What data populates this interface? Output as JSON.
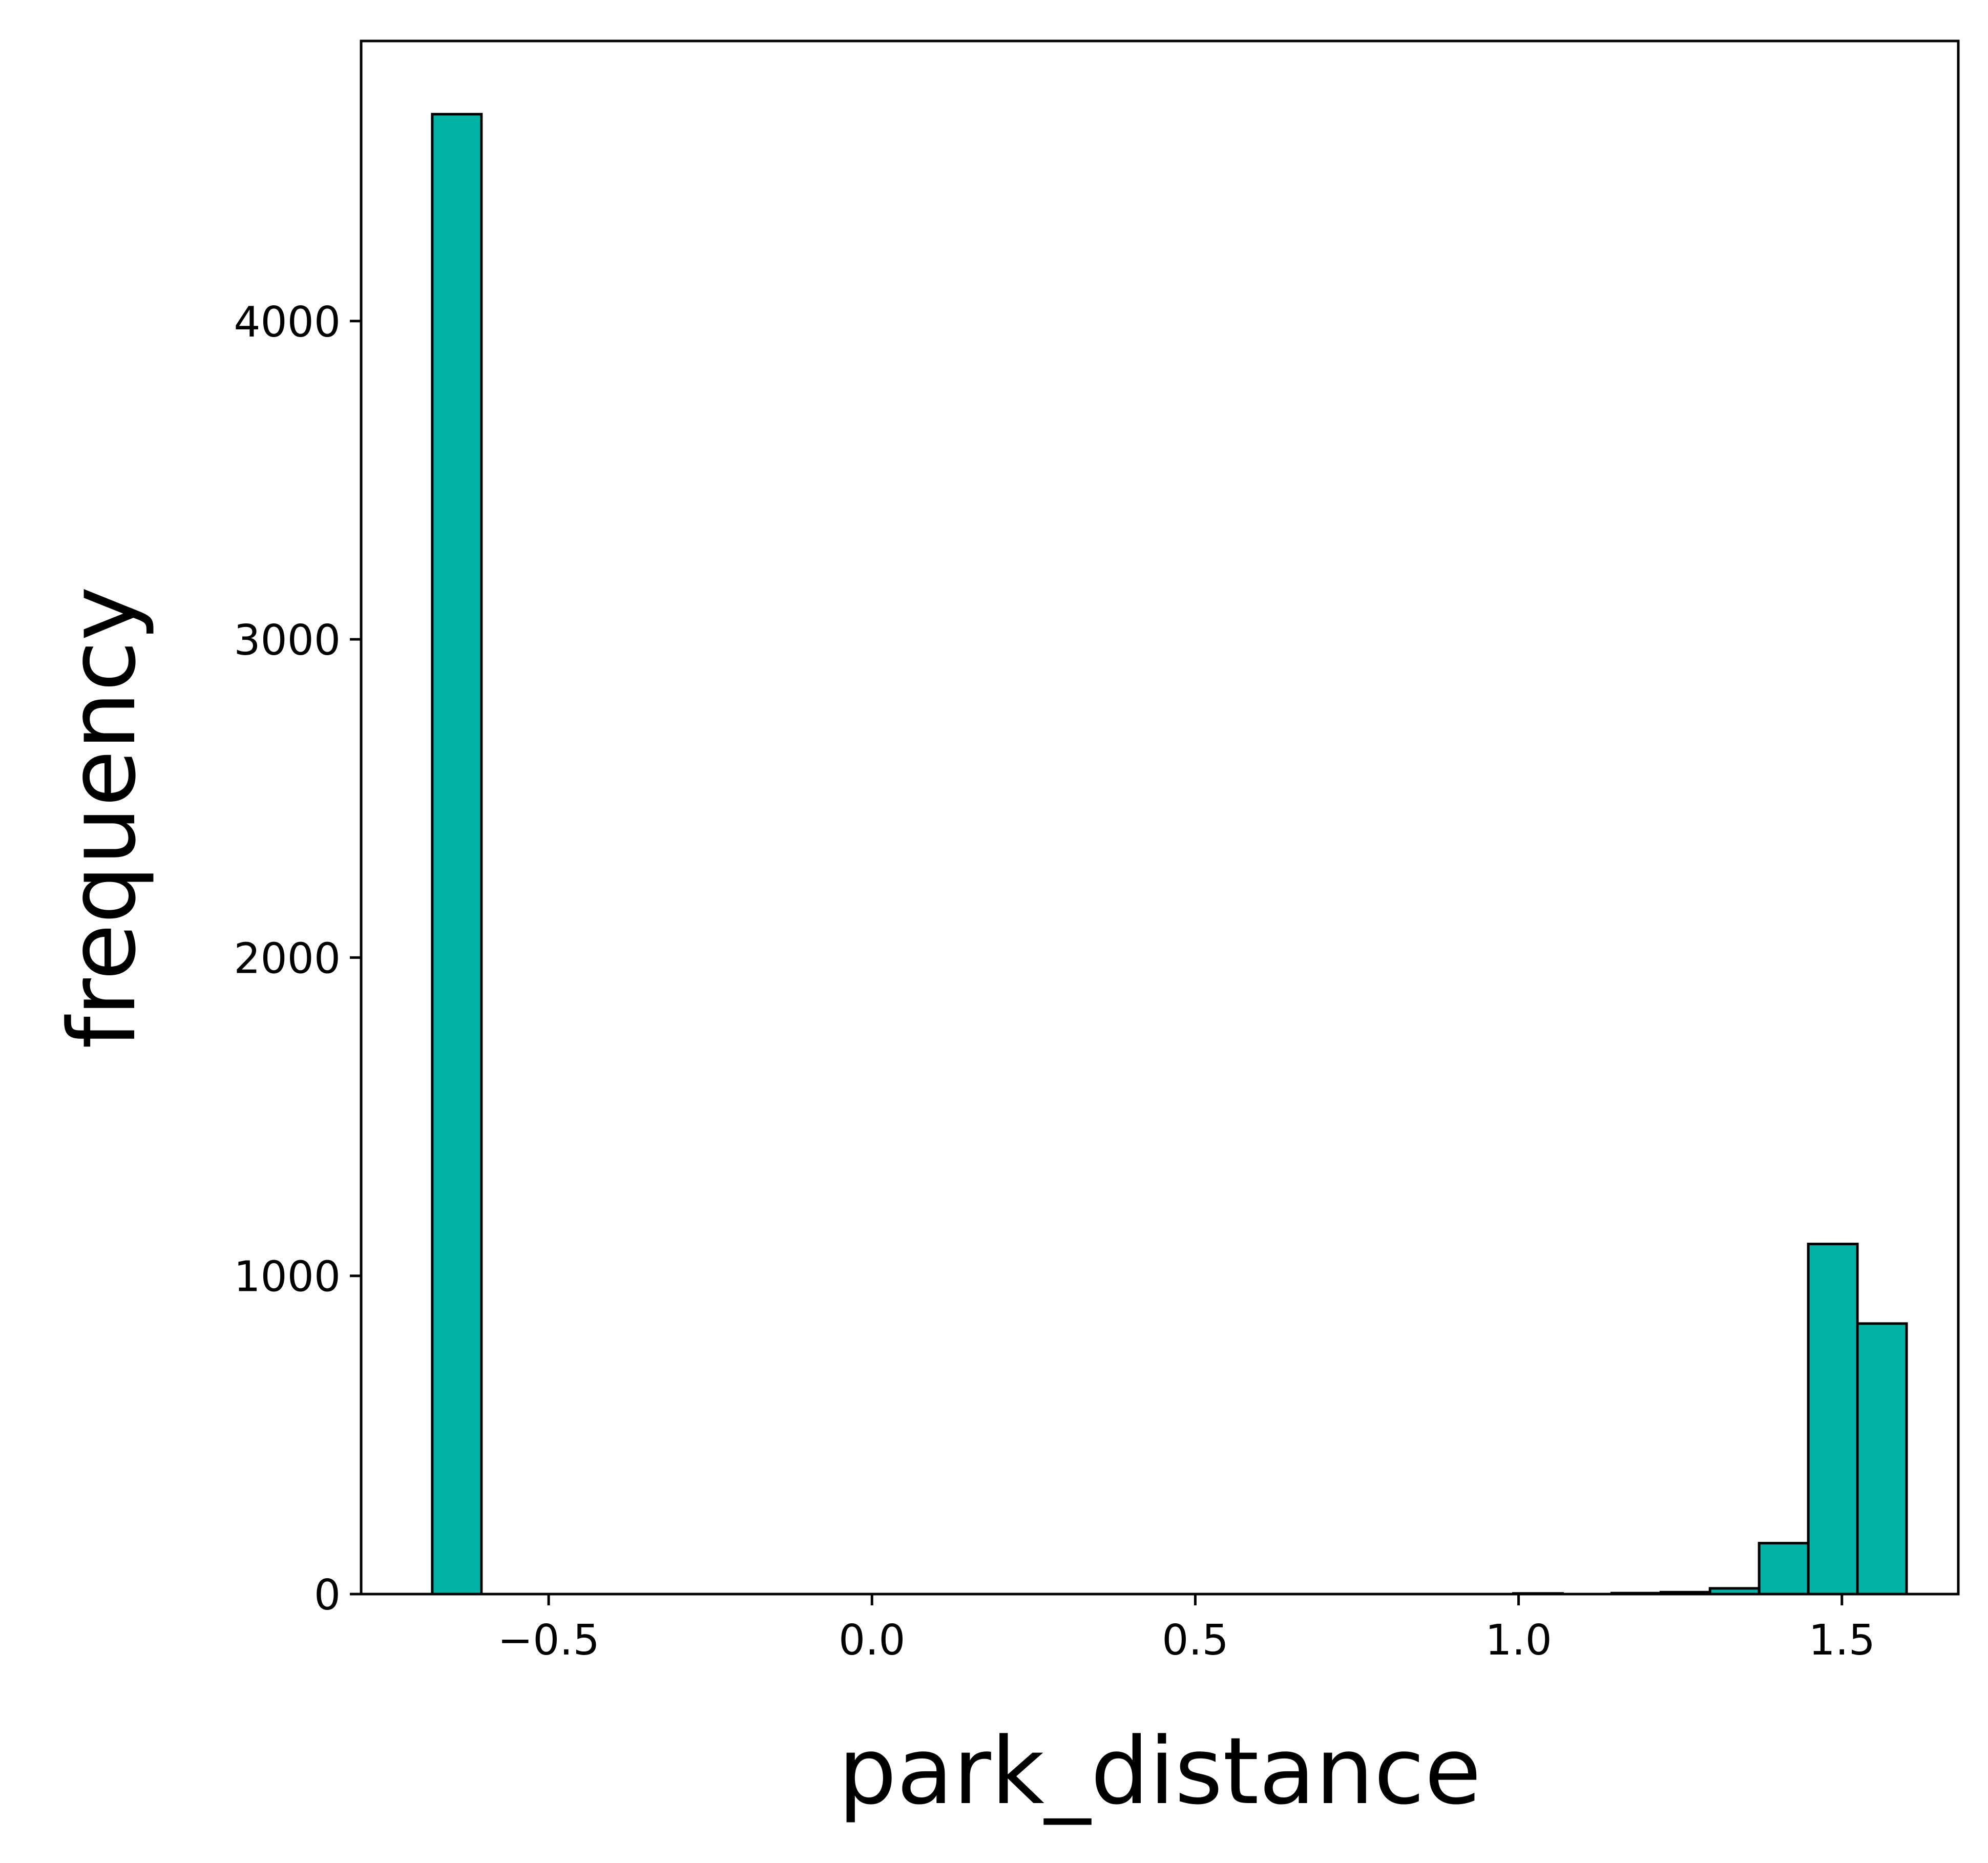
{
  "chart_data": {
    "type": "bar",
    "title": "",
    "xlabel": "park_distance",
    "ylabel": "frequency",
    "xlim": [
      -0.79,
      1.68
    ],
    "ylim": [
      0,
      4880
    ],
    "xticks": [
      -0.5,
      0.0,
      0.5,
      1.0,
      1.5
    ],
    "xtick_labels": [
      "−0.5",
      "0.0",
      "0.5",
      "1.0",
      "1.5"
    ],
    "yticks": [
      0,
      1000,
      2000,
      3000,
      4000
    ],
    "ytick_labels": [
      "0",
      "1000",
      "2000",
      "3000",
      "4000"
    ],
    "bin_edges": [
      -0.68,
      -0.604,
      -0.528,
      -0.452,
      -0.376,
      -0.3,
      -0.224,
      -0.148,
      -0.072,
      0.004,
      0.08,
      0.156,
      0.232,
      0.308,
      0.384,
      0.46,
      0.536,
      0.612,
      0.688,
      0.764,
      0.84,
      0.916,
      0.992,
      1.068,
      1.144,
      1.22,
      1.296,
      1.372,
      1.448,
      1.524,
      1.6
    ],
    "values": [
      4650,
      0,
      0,
      0,
      0,
      0,
      0,
      0,
      0,
      0,
      0,
      0,
      0,
      0,
      0,
      0,
      0,
      0,
      0,
      0,
      0,
      0,
      2,
      0,
      3,
      6,
      18,
      160,
      1100,
      850
    ],
    "grid": false,
    "legend": "none",
    "colors": {
      "bar_fill": "#00b3a6",
      "bar_edge": "#000000",
      "axis": "#000000"
    }
  }
}
